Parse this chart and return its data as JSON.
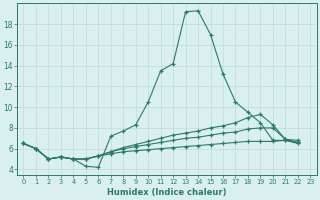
{
  "xlabel": "Humidex (Indice chaleur)",
  "background_color": "#daf0ee",
  "grid_color": "#c0dbd8",
  "line_color": "#2a7a6a",
  "xlim": [
    -0.5,
    23.5
  ],
  "ylim": [
    3.5,
    20.0
  ],
  "xticks": [
    0,
    1,
    2,
    3,
    4,
    5,
    6,
    7,
    8,
    9,
    10,
    11,
    12,
    13,
    14,
    15,
    16,
    17,
    18,
    19,
    20,
    21,
    22,
    23
  ],
  "yticks": [
    4,
    6,
    8,
    10,
    12,
    14,
    16,
    18
  ],
  "line1_x": [
    0,
    1,
    2,
    3,
    4,
    5,
    6,
    7,
    8,
    9,
    10,
    11,
    12,
    13,
    14,
    15,
    16,
    17,
    18,
    19,
    20,
    21,
    22
  ],
  "line1_y": [
    6.5,
    6.0,
    5.0,
    5.2,
    5.0,
    4.3,
    4.2,
    7.2,
    7.7,
    8.3,
    10.5,
    13.5,
    14.2,
    19.2,
    19.3,
    17.0,
    13.2,
    10.5,
    9.5,
    8.5,
    6.8,
    6.8,
    6.5
  ],
  "line2_x": [
    0,
    1,
    2,
    3,
    4,
    5,
    6,
    7,
    8,
    9,
    10,
    11,
    12,
    13,
    14,
    15,
    16,
    17,
    18,
    19,
    20,
    21,
    22
  ],
  "line2_y": [
    6.5,
    6.0,
    5.0,
    5.2,
    5.0,
    5.0,
    5.3,
    5.7,
    6.1,
    6.4,
    6.7,
    7.0,
    7.3,
    7.5,
    7.7,
    8.0,
    8.2,
    8.5,
    9.0,
    9.3,
    8.3,
    6.9,
    6.8
  ],
  "line3_x": [
    0,
    1,
    2,
    3,
    4,
    5,
    6,
    7,
    8,
    9,
    10,
    11,
    12,
    13,
    14,
    15,
    16,
    17,
    18,
    19,
    20,
    21,
    22
  ],
  "line3_y": [
    6.5,
    6.0,
    5.0,
    5.2,
    5.0,
    5.0,
    5.3,
    5.7,
    6.0,
    6.2,
    6.4,
    6.6,
    6.8,
    7.0,
    7.1,
    7.3,
    7.5,
    7.6,
    7.9,
    8.0,
    8.0,
    6.9,
    6.6
  ],
  "line4_x": [
    0,
    1,
    2,
    3,
    4,
    5,
    6,
    7,
    8,
    9,
    10,
    11,
    12,
    13,
    14,
    15,
    16,
    17,
    18,
    19,
    20,
    21,
    22
  ],
  "line4_y": [
    6.5,
    6.0,
    5.0,
    5.2,
    5.0,
    5.0,
    5.3,
    5.5,
    5.7,
    5.8,
    5.9,
    6.0,
    6.1,
    6.2,
    6.3,
    6.4,
    6.5,
    6.6,
    6.7,
    6.7,
    6.7,
    6.8,
    6.6
  ]
}
